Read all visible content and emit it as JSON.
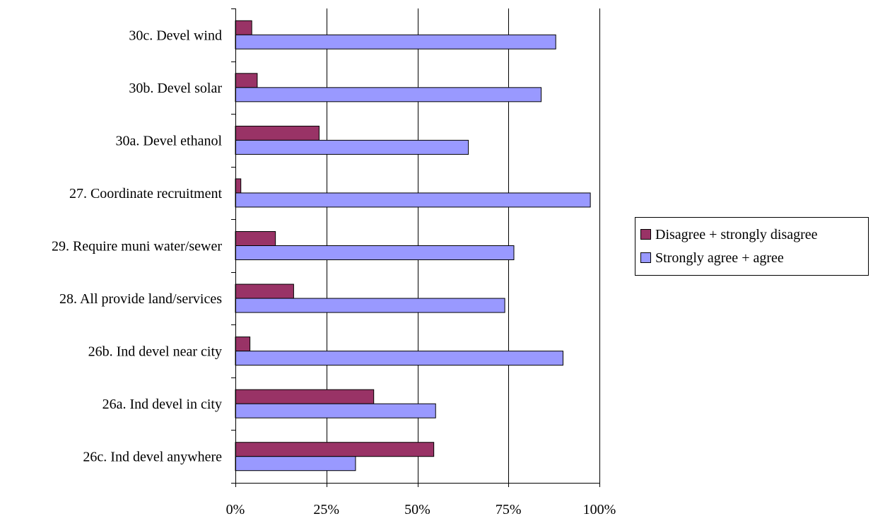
{
  "chart_data": {
    "type": "bar",
    "orientation": "horizontal",
    "categories": [
      "30c. Devel wind",
      "30b. Devel solar",
      "30a. Devel ethanol",
      "27. Coordinate recruitment",
      "29. Require muni water/sewer",
      "28. All provide land/services",
      "26b. Ind devel near city",
      "26a. Ind devel in city",
      "26c. Ind devel anywhere"
    ],
    "series": [
      {
        "name": "Disagree + strongly disagree",
        "color": "#993366",
        "values": [
          4.5,
          6,
          23,
          1.5,
          11,
          16,
          4,
          38,
          54.5
        ]
      },
      {
        "name": "Strongly agree + agree",
        "color": "#9999ff",
        "values": [
          88,
          84,
          64,
          97.5,
          76.5,
          74,
          90,
          55,
          33
        ]
      }
    ],
    "xlim": [
      0,
      100
    ],
    "xticks": [
      "0%",
      "25%",
      "50%",
      "75%",
      "100%"
    ],
    "xtick_values": [
      0,
      25,
      50,
      75,
      100
    ],
    "grid": true,
    "legend_position": "right"
  }
}
